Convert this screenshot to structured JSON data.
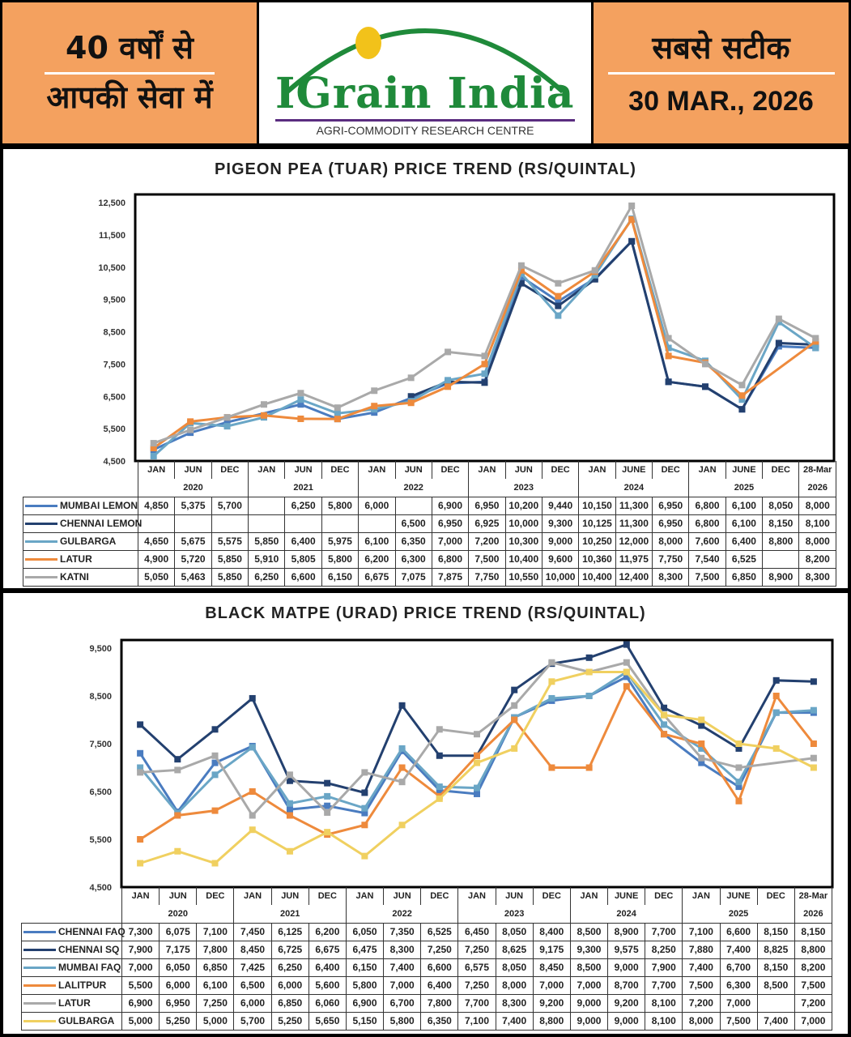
{
  "header": {
    "left_line1": "40 वर्षों से",
    "left_line2": "आपकी सेवा में",
    "logo_text": "IGrain India",
    "logo_subtitle": "AGRI-COMMODITY RESEARCH CENTRE",
    "right_line1": "सबसे सटीक",
    "date": "30 MAR., 2026"
  },
  "chart_data": [
    {
      "type": "line",
      "title": "PIGEON PEA (TUAR) PRICE TREND (RS/QUINTAL)",
      "ylim": [
        4500,
        12500
      ],
      "yticks": [
        4500,
        5500,
        6500,
        7500,
        8500,
        9500,
        10500,
        11500,
        12500
      ],
      "categories": [
        "JAN",
        "JUN",
        "DEC",
        "JAN",
        "JUN",
        "DEC",
        "JAN",
        "JUN",
        "DEC",
        "JAN",
        "JUN",
        "DEC",
        "JAN",
        "JUNE",
        "DEC",
        "JAN",
        "JUNE",
        "DEC",
        "28-Mar"
      ],
      "years": [
        {
          "label": "2020",
          "span": 3
        },
        {
          "label": "2021",
          "span": 3
        },
        {
          "label": "2022",
          "span": 3
        },
        {
          "label": "2023",
          "span": 3
        },
        {
          "label": "2024",
          "span": 3
        },
        {
          "label": "2025",
          "span": 3
        },
        {
          "label": "2026",
          "span": 1
        }
      ],
      "series": [
        {
          "name": "MUMBAI LEMON",
          "color": "#4a7cc0",
          "values": [
            4850,
            5375,
            5700,
            null,
            6250,
            5800,
            6000,
            null,
            6900,
            6950,
            10200,
            9440,
            10150,
            11300,
            6950,
            6800,
            6100,
            8050,
            8000
          ]
        },
        {
          "name": "CHENNAI LEMON",
          "color": "#23406f",
          "values": [
            null,
            null,
            null,
            null,
            null,
            null,
            null,
            6500,
            6950,
            6925,
            10000,
            9300,
            10125,
            11300,
            6950,
            6800,
            6100,
            8150,
            8100
          ]
        },
        {
          "name": "GULBARGA",
          "color": "#6aa6c6",
          "values": [
            4650,
            5675,
            5575,
            5850,
            6400,
            5975,
            6100,
            6350,
            7000,
            7200,
            10300,
            9000,
            10250,
            12000,
            8000,
            7600,
            6400,
            8800,
            8000
          ]
        },
        {
          "name": "LATUR",
          "color": "#ee8a3c",
          "values": [
            4900,
            5720,
            5850,
            5910,
            5805,
            5800,
            6200,
            6300,
            6800,
            7500,
            10400,
            9600,
            10360,
            11975,
            7750,
            7540,
            6525,
            null,
            8200
          ]
        },
        {
          "name": "KATNI",
          "color": "#a9a9a9",
          "values": [
            5050,
            5463,
            5850,
            6250,
            6600,
            6150,
            6675,
            7075,
            7875,
            7750,
            10550,
            10000,
            10400,
            12400,
            8300,
            7500,
            6850,
            8900,
            8300
          ]
        }
      ]
    },
    {
      "type": "line",
      "title": "BLACK MATPE (URAD) PRICE TREND (RS/QUINTAL)",
      "ylim": [
        4500,
        9500
      ],
      "yticks": [
        4500,
        5500,
        6500,
        7500,
        8500,
        9500
      ],
      "categories": [
        "JAN",
        "JUN",
        "DEC",
        "JAN",
        "JUN",
        "DEC",
        "JAN",
        "JUN",
        "DEC",
        "JAN",
        "JUN",
        "DEC",
        "JAN",
        "JUNE",
        "DEC",
        "JAN",
        "JUNE",
        "DEC",
        "28-Mar"
      ],
      "years": [
        {
          "label": "2020",
          "span": 3
        },
        {
          "label": "2021",
          "span": 3
        },
        {
          "label": "2022",
          "span": 3
        },
        {
          "label": "2023",
          "span": 3
        },
        {
          "label": "2024",
          "span": 3
        },
        {
          "label": "2025",
          "span": 3
        },
        {
          "label": "2026",
          "span": 1
        }
      ],
      "series": [
        {
          "name": "CHENNAI FAQ",
          "color": "#4a7cc0",
          "values": [
            7300,
            6075,
            7100,
            7450,
            6125,
            6200,
            6050,
            7350,
            6525,
            6450,
            8050,
            8400,
            8500,
            8900,
            7700,
            7100,
            6600,
            8150,
            8150
          ]
        },
        {
          "name": "CHENNAI SQ",
          "color": "#23406f",
          "values": [
            7900,
            7175,
            7800,
            8450,
            6725,
            6675,
            6475,
            8300,
            7250,
            7250,
            8625,
            9175,
            9300,
            9575,
            8250,
            7880,
            7400,
            8825,
            8800
          ]
        },
        {
          "name": "MUMBAI FAQ",
          "color": "#6aa6c6",
          "values": [
            7000,
            6050,
            6850,
            7425,
            6250,
            6400,
            6150,
            7400,
            6600,
            6575,
            8050,
            8450,
            8500,
            9000,
            7900,
            7400,
            6700,
            8150,
            8200
          ]
        },
        {
          "name": "LALITPUR",
          "color": "#ee8a3c",
          "values": [
            5500,
            6000,
            6100,
            6500,
            6000,
            5600,
            5800,
            7000,
            6400,
            7250,
            8000,
            7000,
            7000,
            8700,
            7700,
            7500,
            6300,
            8500,
            7500
          ]
        },
        {
          "name": "LATUR",
          "color": "#a9a9a9",
          "values": [
            6900,
            6950,
            7250,
            6000,
            6850,
            6060,
            6900,
            6700,
            7800,
            7700,
            8300,
            9200,
            9000,
            9200,
            8100,
            7200,
            7000,
            null,
            7200
          ]
        },
        {
          "name": "GULBARGA",
          "color": "#f0d060",
          "values": [
            5000,
            5250,
            5000,
            5700,
            5250,
            5650,
            5150,
            5800,
            6350,
            7100,
            7400,
            8800,
            9000,
            9000,
            8100,
            8000,
            7500,
            7400,
            7000
          ]
        }
      ]
    }
  ]
}
